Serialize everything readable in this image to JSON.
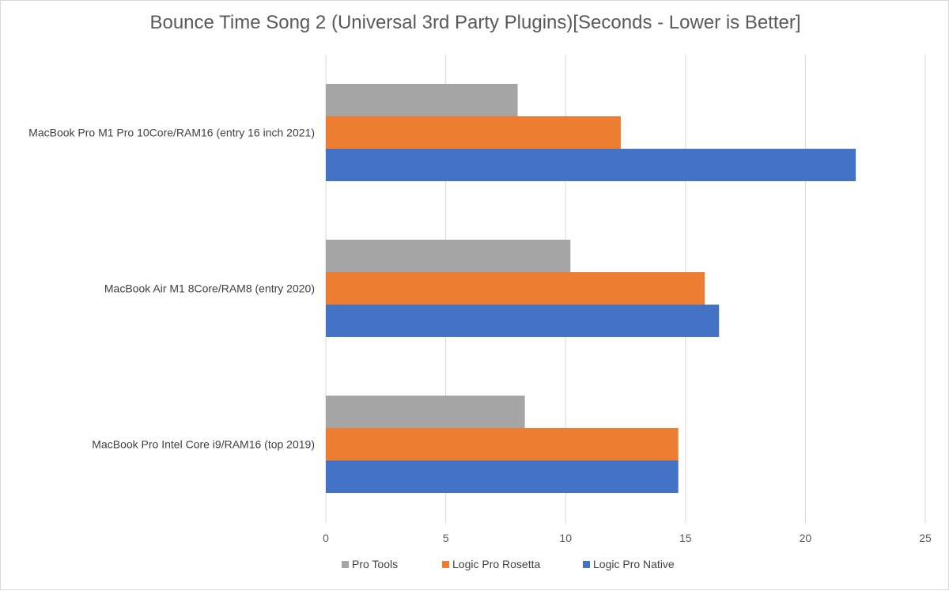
{
  "chart_data": {
    "type": "bar",
    "orientation": "horizontal",
    "title": "Bounce Time Song 2 (Universal 3rd Party Plugins)[Seconds - Lower is Better]",
    "categories": [
      "MacBook Pro M1 Pro 10Core/RAM16 (entry 16 inch 2021)",
      "MacBook Air M1 8Core/RAM8 (entry 2020)",
      "MacBook Pro Intel Core i9/RAM16 (top 2019)"
    ],
    "series": [
      {
        "name": "Pro Tools",
        "color": "#a5a5a5",
        "values": [
          8.0,
          10.2,
          8.3
        ]
      },
      {
        "name": "Logic Pro Rosetta",
        "color": "#ed7d31",
        "values": [
          12.3,
          15.8,
          14.7
        ]
      },
      {
        "name": "Logic Pro Native",
        "color": "#4472c4",
        "values": [
          22.1,
          16.4,
          14.7
        ]
      }
    ],
    "xlim": [
      0,
      25
    ],
    "xticks": [
      "0",
      "5",
      "10",
      "15",
      "20",
      "25"
    ],
    "grid": true,
    "legend_position": "bottom"
  }
}
